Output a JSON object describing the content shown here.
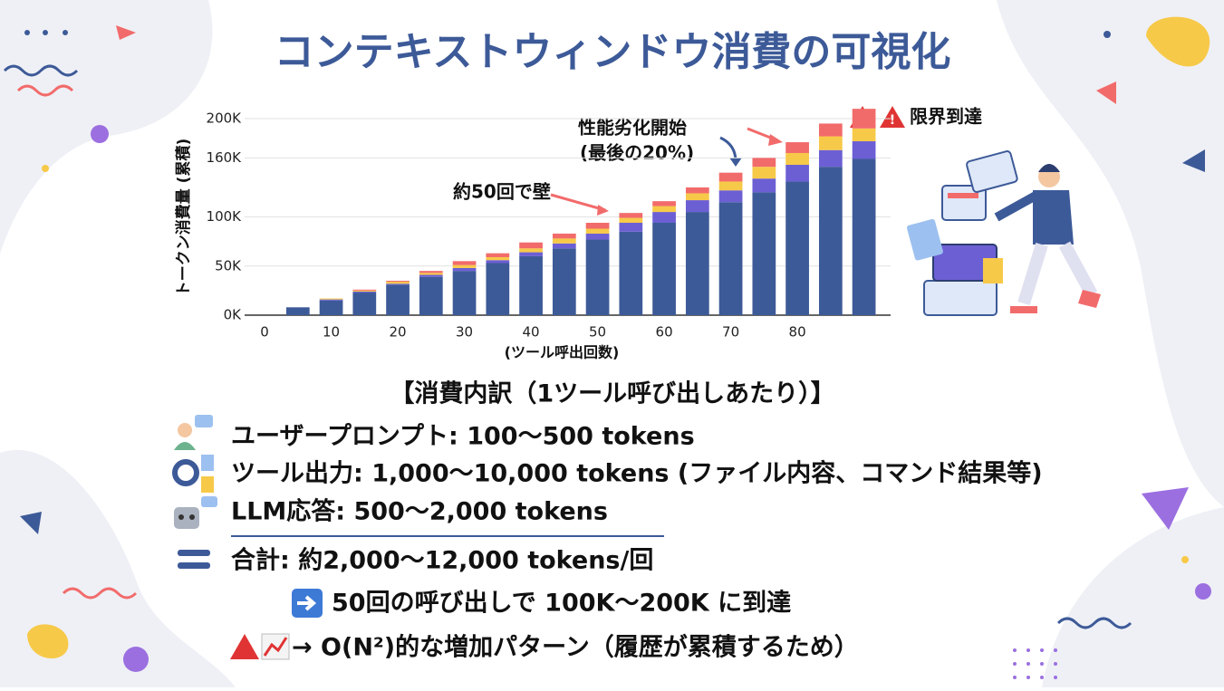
{
  "chart_data": {
    "type": "bar",
    "stacked": true,
    "title": "コンテキストウィンドウ消費の可視化",
    "y_label": "トークン消費量 (累積)",
    "x_label": "(ツール呼出回数)",
    "annotations": [
      "約50回で壁",
      "性能劣化開始",
      "(最後の20%)",
      "限界到達"
    ],
    "x": [
      5,
      10,
      15,
      20,
      25,
      30,
      35,
      40,
      45,
      50,
      55,
      60,
      65,
      70,
      75,
      80,
      85,
      90
    ],
    "series": [
      {
        "color": "#3d5a98",
        "values": [
          8,
          15,
          23,
          31,
          39,
          45,
          53,
          60,
          68,
          77,
          85,
          94,
          105,
          115,
          125,
          136,
          151,
          159
        ]
      },
      {
        "color": "#6c5fd4",
        "values": [
          0,
          1,
          1,
          1,
          2,
          3,
          3,
          4,
          5,
          6,
          9,
          11,
          12,
          12,
          14,
          17,
          17,
          18
        ]
      },
      {
        "color": "#f7c948",
        "values": [
          0,
          1,
          1,
          2,
          2,
          3,
          3,
          4,
          5,
          5,
          5,
          6,
          7,
          9,
          12,
          12,
          14,
          13
        ]
      },
      {
        "color": "#f26b6b",
        "values": [
          0,
          0,
          1,
          1,
          2,
          4,
          4,
          6,
          5,
          6,
          5,
          5,
          6,
          9,
          9,
          11,
          13,
          20
        ]
      }
    ],
    "xlim": [
      -3,
      94
    ],
    "xticks": [
      0,
      10,
      20,
      30,
      40,
      50,
      60,
      70,
      80
    ],
    "ylim": [
      0,
      200
    ],
    "yticks": [
      {
        "value": 0,
        "label": "0K"
      },
      {
        "value": 50,
        "label": "50K"
      },
      {
        "value": 100,
        "label": "100K"
      },
      {
        "value": 160,
        "label": "160K"
      },
      {
        "value": 200,
        "label": "200K"
      }
    ],
    "grid": true
  },
  "breakdown": {
    "heading": "【消費内訳（1ツール呼び出しあたり）】",
    "items": [
      "ユーザープロンプト: 100〜500 tokens",
      "ツール出力: 1,000〜10,000 tokens (ファイル内容、コマンド結果等)",
      "LLM応答: 500〜2,000 tokens"
    ],
    "total": "合計: 約2,000〜12,000 tokens/回",
    "result": "50回の呼び出しで 100K〜200K に到達",
    "growth": "→ O(N²)的な増加パターン（履歴が累積するため）"
  }
}
